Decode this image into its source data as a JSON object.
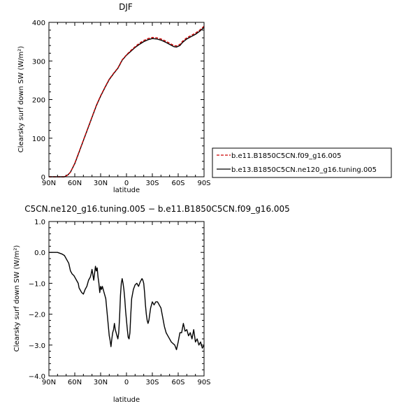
{
  "chart_data": [
    {
      "type": "line",
      "title": "DJF",
      "xlabel": "latitude",
      "ylabel": "Clearsky surf down SW (W/m²)",
      "x_ticks": [
        "90N",
        "60N",
        "30N",
        "0",
        "30S",
        "60S",
        "90S"
      ],
      "y_ticks": [
        "0",
        "100",
        "200",
        "300",
        "400"
      ],
      "xlim": [
        90,
        -90
      ],
      "ylim": [
        0,
        400
      ],
      "legend": "right",
      "series": [
        {
          "name": "b.e11.B1850C5CN.f09_g16.005",
          "style": "dashed",
          "color": "#cc0000",
          "x": [
            90,
            80,
            72,
            68,
            65,
            60,
            55,
            50,
            45,
            40,
            35,
            30,
            25,
            20,
            15,
            10,
            5,
            0,
            -5,
            -10,
            -15,
            -20,
            -25,
            -30,
            -35,
            -40,
            -45,
            -50,
            -55,
            -58,
            -62,
            -65,
            -70,
            -75,
            -80,
            -85,
            -88,
            -90
          ],
          "y": [
            0,
            0,
            0,
            5,
            12,
            35,
            65,
            95,
            125,
            155,
            185,
            210,
            232,
            253,
            268,
            282,
            303,
            316,
            327,
            337,
            346,
            353,
            358,
            361,
            360,
            357,
            352,
            346,
            340,
            339,
            343,
            351,
            360,
            366,
            372,
            380,
            386,
            390
          ]
        },
        {
          "name": "b.e13.B1850C5CN.ne120_g16.tuning.005",
          "style": "solid",
          "color": "#000000",
          "x": [
            90,
            80,
            72,
            68,
            65,
            60,
            55,
            50,
            45,
            40,
            35,
            30,
            25,
            20,
            15,
            10,
            5,
            0,
            -5,
            -10,
            -15,
            -20,
            -25,
            -30,
            -35,
            -40,
            -45,
            -50,
            -55,
            -58,
            -62,
            -65,
            -70,
            -75,
            -80,
            -85,
            -88,
            -90
          ],
          "y": [
            0,
            0,
            0,
            5,
            12,
            34,
            64,
            94,
            124,
            154,
            184,
            209,
            231,
            252,
            267,
            281,
            302,
            315,
            325,
            335,
            343,
            350,
            355,
            358,
            357,
            354,
            349,
            343,
            337,
            336,
            340,
            348,
            357,
            363,
            369,
            377,
            383,
            387
          ]
        }
      ]
    },
    {
      "type": "line",
      "title": "C5CN.ne120_g16.tuning.005 − b.e11.B1850C5CN.f09_g16.005",
      "xlabel": "latitude",
      "ylabel": "Clearsky surf down SW (W/m²)",
      "x_ticks": [
        "90N",
        "60N",
        "30N",
        "0",
        "30S",
        "60S",
        "90S"
      ],
      "y_ticks": [
        "−4.0",
        "−3.0",
        "−2.0",
        "−1.0",
        "0.0",
        "1.0"
      ],
      "xlim": [
        90,
        -90
      ],
      "ylim": [
        -4,
        1
      ],
      "series": [
        {
          "color": "#000000",
          "x": [
            90,
            80,
            75,
            72,
            70,
            67,
            65,
            63,
            61,
            60,
            58,
            56,
            55,
            54,
            52,
            50,
            48,
            46,
            45,
            44,
            42,
            41,
            40,
            38,
            36,
            35,
            34,
            33,
            32,
            31,
            30,
            29,
            28,
            27,
            26,
            25,
            24,
            23,
            22,
            21,
            20,
            19,
            18,
            17,
            16,
            15,
            14,
            13,
            12,
            11,
            10,
            9,
            8,
            7,
            6,
            5,
            4,
            3,
            2,
            1,
            0,
            -1,
            -2,
            -3,
            -4,
            -5,
            -6,
            -8,
            -10,
            -12,
            -14,
            -16,
            -18,
            -19,
            -20,
            -21,
            -22,
            -23,
            -24,
            -25,
            -26,
            -27,
            -28,
            -29,
            -30,
            -32,
            -34,
            -36,
            -38,
            -40,
            -42,
            -44,
            -46,
            -48,
            -50,
            -52,
            -54,
            -56,
            -58,
            -60,
            -62,
            -64,
            -66,
            -68,
            -70,
            -72,
            -74,
            -76,
            -78,
            -80,
            -82,
            -84,
            -86,
            -88,
            -90
          ],
          "y": [
            0,
            0,
            -0.05,
            -0.1,
            -0.2,
            -0.35,
            -0.6,
            -0.7,
            -0.75,
            -0.8,
            -0.9,
            -1.0,
            -1.15,
            -1.2,
            -1.3,
            -1.35,
            -1.2,
            -1.1,
            -1.0,
            -0.9,
            -0.8,
            -0.7,
            -0.55,
            -0.9,
            -0.45,
            -0.6,
            -0.5,
            -0.8,
            -1.0,
            -1.3,
            -1.1,
            -1.2,
            -1.1,
            -1.2,
            -1.3,
            -1.4,
            -1.5,
            -1.8,
            -2.1,
            -2.4,
            -2.7,
            -2.85,
            -3.05,
            -2.8,
            -2.6,
            -2.5,
            -2.3,
            -2.5,
            -2.6,
            -2.7,
            -2.8,
            -2.6,
            -2.1,
            -1.4,
            -1.0,
            -0.85,
            -1.0,
            -1.2,
            -1.5,
            -1.9,
            -2.2,
            -2.5,
            -2.75,
            -2.8,
            -2.6,
            -2.0,
            -1.5,
            -1.2,
            -1.05,
            -1.0,
            -1.1,
            -0.95,
            -0.85,
            -0.9,
            -1.0,
            -1.3,
            -1.7,
            -2.0,
            -2.2,
            -2.3,
            -2.2,
            -2.0,
            -1.8,
            -1.7,
            -1.6,
            -1.7,
            -1.6,
            -1.6,
            -1.7,
            -1.8,
            -2.1,
            -2.4,
            -2.6,
            -2.7,
            -2.8,
            -2.9,
            -2.95,
            -3.0,
            -3.15,
            -2.9,
            -2.6,
            -2.6,
            -2.3,
            -2.55,
            -2.5,
            -2.7,
            -2.6,
            -2.8,
            -2.5,
            -2.9,
            -2.8,
            -3.0,
            -2.9,
            -3.1,
            -3.0
          ]
        }
      ]
    }
  ]
}
